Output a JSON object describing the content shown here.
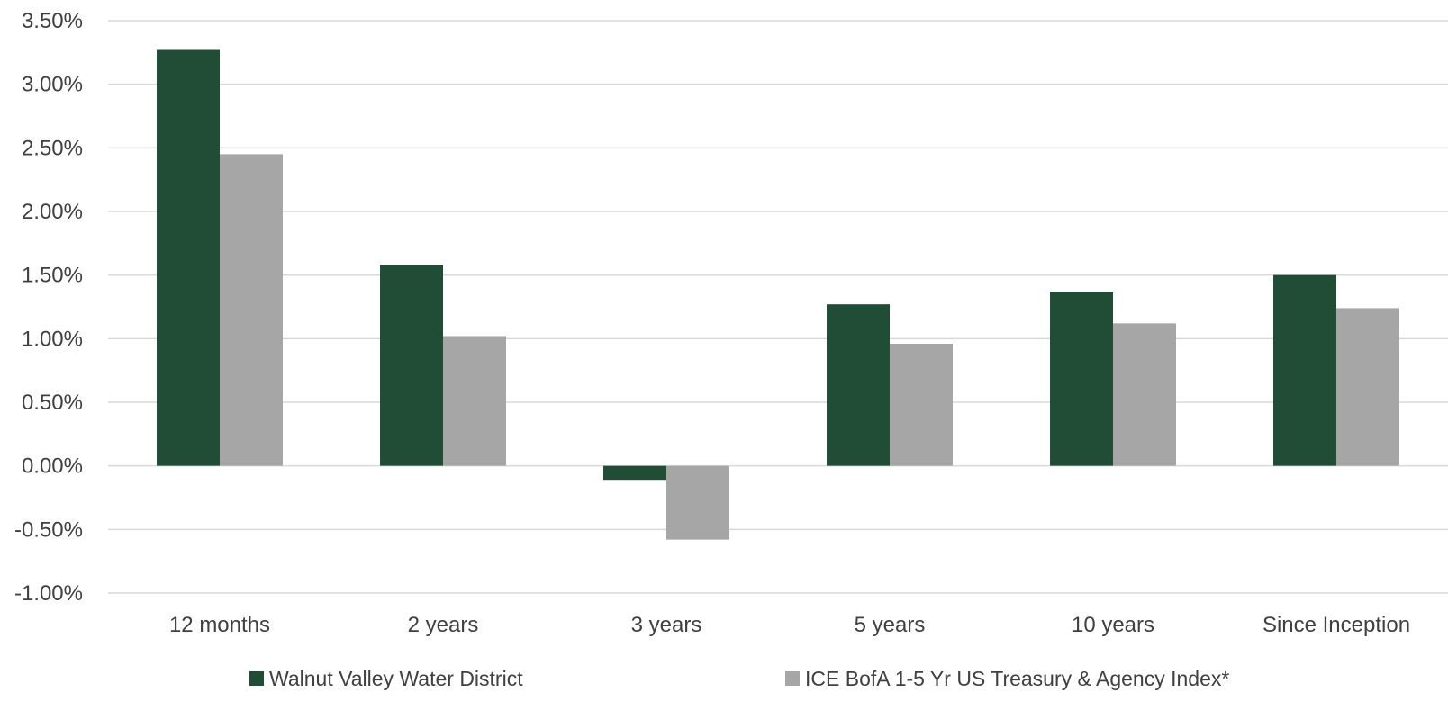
{
  "chart_data": {
    "type": "bar",
    "categories": [
      "12 months",
      "2 years",
      "3 years",
      "5 years",
      "10 years",
      "Since Inception"
    ],
    "series": [
      {
        "name": "Walnut Valley Water District",
        "color": "#214d36",
        "values": [
          3.27,
          1.58,
          -0.11,
          1.27,
          1.37,
          1.5
        ]
      },
      {
        "name": "ICE BofA 1-5 Yr US Treasury & Agency Index*",
        "color": "#a6a6a6",
        "values": [
          2.45,
          1.02,
          -0.58,
          0.96,
          1.12,
          1.24
        ]
      }
    ],
    "y_ticks": [
      "3.50%",
      "3.00%",
      "2.50%",
      "2.00%",
      "1.50%",
      "1.00%",
      "0.50%",
      "0.00%",
      "-0.50%",
      "-1.00%"
    ],
    "ylim": [
      -1.0,
      3.5
    ],
    "y_step": 0.5,
    "title": "",
    "xlabel": "",
    "ylabel": "",
    "grid": true,
    "legend_position": "bottom",
    "gridline_color": "#d9d9d9"
  }
}
